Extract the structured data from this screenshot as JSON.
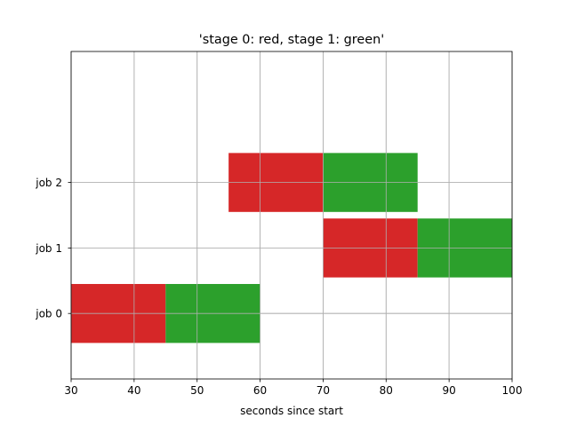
{
  "chart_data": {
    "type": "bar",
    "orientation": "horizontal-gantt",
    "title": "'stage 0: red, stage 1: green'",
    "xlabel": "seconds since start",
    "ylabel": "",
    "xlim": [
      30,
      100
    ],
    "ylim": [
      -1,
      4
    ],
    "x_ticks": [
      "30",
      "40",
      "50",
      "60",
      "70",
      "80",
      "90",
      "100"
    ],
    "x_tick_values": [
      30,
      40,
      50,
      60,
      70,
      80,
      90,
      100
    ],
    "categories": [
      "job 0",
      "job 1",
      "job 2"
    ],
    "grid": true,
    "colors": {
      "stage0": "#d62728",
      "stage1": "#2ca02c",
      "grid": "#b0b0b0"
    },
    "jobs": [
      {
        "label": "job 0",
        "stage0": [
          30,
          45
        ],
        "stage1": [
          45,
          60
        ]
      },
      {
        "label": "job 1",
        "stage0": [
          70,
          85
        ],
        "stage1": [
          85,
          100
        ]
      },
      {
        "label": "job 2",
        "stage0": [
          55,
          70
        ],
        "stage1": [
          70,
          85
        ]
      }
    ]
  }
}
